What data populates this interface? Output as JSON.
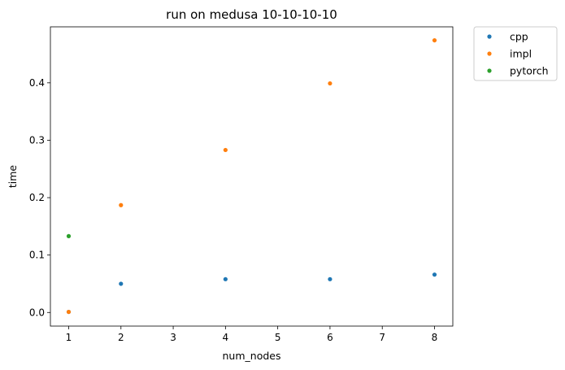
{
  "chart_data": {
    "type": "scatter",
    "title": "run on medusa 10-10-10-10",
    "xlabel": "num_nodes",
    "ylabel": "time",
    "xlim": [
      0.65,
      8.35
    ],
    "ylim": [
      -0.0237,
      0.4975
    ],
    "xticks": [
      1,
      2,
      3,
      4,
      5,
      6,
      7,
      8
    ],
    "yticks": [
      0.0,
      0.1,
      0.2,
      0.3,
      0.4
    ],
    "xtick_labels": [
      "1",
      "2",
      "3",
      "4",
      "5",
      "6",
      "7",
      "8"
    ],
    "ytick_labels": [
      "0.0",
      "0.1",
      "0.2",
      "0.3",
      "0.4"
    ],
    "grid": false,
    "legend_position": "outside-top-right",
    "series": [
      {
        "name": "cpp",
        "color": "#1f77b4",
        "x": [
          1,
          2,
          4,
          6,
          8
        ],
        "y": [
          0.001,
          0.05,
          0.058,
          0.058,
          0.066
        ]
      },
      {
        "name": "impl",
        "color": "#ff7f0e",
        "x": [
          1,
          2,
          4,
          6,
          8
        ],
        "y": [
          0.001,
          0.187,
          0.283,
          0.399,
          0.474
        ]
      },
      {
        "name": "pytorch",
        "color": "#2ca02c",
        "x": [
          1
        ],
        "y": [
          0.133
        ]
      }
    ]
  }
}
